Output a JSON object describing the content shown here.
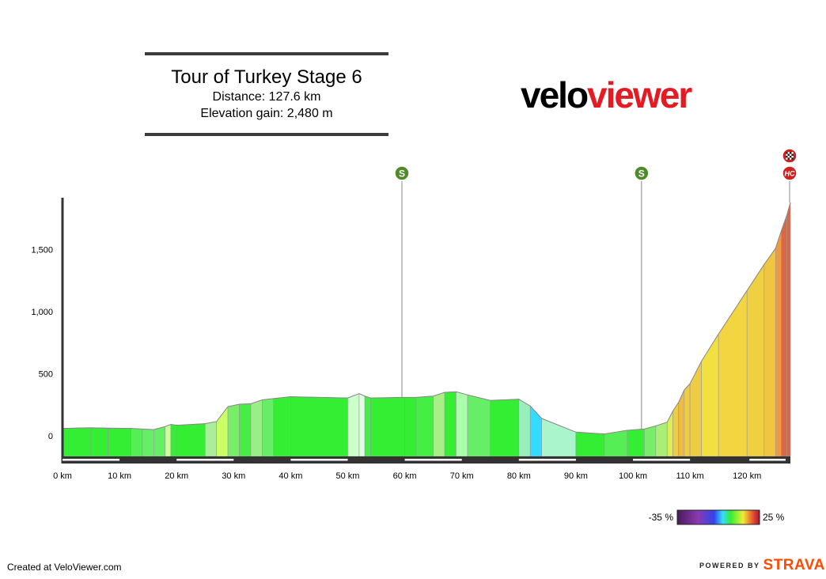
{
  "header": {
    "title": "Tour of Turkey Stage 6",
    "distance": "Distance: 127.6 km",
    "elevation_gain": "Elevation gain: 2,480 m"
  },
  "logo": {
    "part1": "velo",
    "part2": "viewer",
    "color_primary": "#000000",
    "color_accent": "#e31b23"
  },
  "footer": {
    "credit": "Created at VeloViewer.com",
    "powered_by": "POWERED BY",
    "brand": "STRAVA",
    "brand_color": "#fc4c02"
  },
  "legend": {
    "min_label": "-35 %",
    "max_label": "25 %"
  },
  "chart_data": {
    "type": "area",
    "title": "Tour of Turkey Stage 6",
    "xlabel": "",
    "ylabel": "",
    "xlim": [
      0,
      127.6
    ],
    "ylim": [
      -200,
      1900
    ],
    "x_ticks": [
      0,
      10,
      20,
      30,
      40,
      50,
      60,
      70,
      80,
      90,
      100,
      110,
      120
    ],
    "x_tick_labels": [
      "0 km",
      "10 km",
      "20 km",
      "30 km",
      "40 km",
      "50 km",
      "60 km",
      "70 km",
      "80 km",
      "90 km",
      "100 km",
      "110 km",
      "120 km"
    ],
    "y_ticks": [
      0,
      500,
      1000,
      1500
    ],
    "y_tick_labels": [
      "0",
      "500",
      "1,000",
      "1,500"
    ],
    "grid": false,
    "colorscale_gradient_percent": [
      -35,
      25
    ],
    "series": [
      {
        "values": [
          [
            0,
            60
          ],
          [
            5,
            65
          ],
          [
            8,
            62
          ],
          [
            12,
            60
          ],
          [
            14,
            55
          ],
          [
            16,
            50
          ],
          [
            18,
            75
          ],
          [
            19,
            92
          ],
          [
            20,
            85
          ],
          [
            25,
            98
          ],
          [
            27,
            115
          ],
          [
            29,
            235
          ],
          [
            31,
            255
          ],
          [
            33,
            258
          ],
          [
            35,
            290
          ],
          [
            37,
            300
          ],
          [
            40,
            315
          ],
          [
            50,
            305
          ],
          [
            52,
            340
          ],
          [
            53,
            320
          ],
          [
            54,
            305
          ],
          [
            60,
            310
          ],
          [
            62,
            310
          ],
          [
            65,
            320
          ],
          [
            67,
            350
          ],
          [
            69,
            355
          ],
          [
            71,
            330
          ],
          [
            75,
            285
          ],
          [
            80,
            295
          ],
          [
            82,
            240
          ],
          [
            84,
            140
          ],
          [
            90,
            30
          ],
          [
            95,
            15
          ],
          [
            99,
            45
          ],
          [
            102,
            55
          ],
          [
            104,
            80
          ],
          [
            106,
            110
          ],
          [
            107,
            200
          ],
          [
            108,
            270
          ],
          [
            109,
            370
          ],
          [
            110,
            420
          ],
          [
            112,
            600
          ],
          [
            115,
            820
          ],
          [
            120,
            1170
          ],
          [
            123,
            1380
          ],
          [
            125,
            1510
          ],
          [
            126,
            1650
          ],
          [
            127,
            1780
          ],
          [
            127.6,
            1880
          ]
        ],
        "segment_colors": [
          "#33ee33",
          "#33ee33",
          "#33ee33",
          "#55ee55",
          "#66ee66",
          "#66ee66",
          "#ccff99",
          "#33ee33",
          "#33ee33",
          "#aaee99",
          "#ccff66",
          "#77ee66",
          "#44ee44",
          "#99ee88",
          "#66ee66",
          "#33ee33",
          "#33ee33",
          "#ccffcc",
          "#e0ffe0",
          "#44ee44",
          "#33ee33",
          "#33ee33",
          "#44ee44",
          "#aaee88",
          "#33ee33",
          "#aaffaa",
          "#66ee66",
          "#33ee33",
          "#99eebb",
          "#33ddff",
          "#aaf5cc",
          "#33ee33",
          "#55ee55",
          "#33ee33",
          "#77ee66",
          "#aaee77",
          "#ddee55",
          "#eecc44",
          "#eebb44",
          "#eecc44",
          "#eecc44",
          "#f2e040",
          "#f2d540",
          "#eed040",
          "#f0c640",
          "#ee9a44",
          "#dd6644",
          "#dd6644"
        ]
      }
    ],
    "markers": [
      {
        "x": 59.5,
        "label": "S",
        "type": "sprint",
        "color": "#4f8a2b"
      },
      {
        "x": 101.5,
        "label": "S",
        "type": "sprint",
        "color": "#4f8a2b"
      },
      {
        "x": 127.6,
        "label": "HC",
        "type": "climb",
        "color": "#cc2222"
      },
      {
        "x": 127.6,
        "label": "",
        "type": "finish",
        "color": "#cc2222"
      }
    ]
  }
}
